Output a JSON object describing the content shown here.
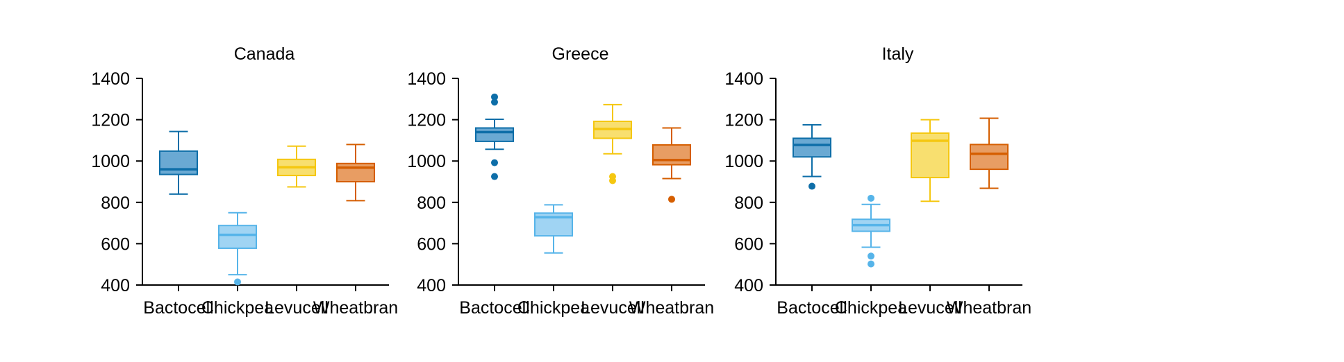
{
  "chart_data": [
    {
      "type": "box",
      "title": "Canada",
      "xlabel": "",
      "ylabel": "",
      "ylim": [
        400,
        1400
      ],
      "yticks": [
        400,
        600,
        800,
        1000,
        1200,
        1400
      ],
      "categories": [
        "Bactocell",
        "Chickpea",
        "Levucell",
        "Wheatbran"
      ],
      "boxes": [
        {
          "category": "Bactocell",
          "whisker_low": 840,
          "q1": 935,
          "median": 960,
          "q3": 1048,
          "whisker_high": 1143,
          "outliers": []
        },
        {
          "category": "Chickpea",
          "whisker_low": 450,
          "q1": 578,
          "median": 643,
          "q3": 688,
          "whisker_high": 750,
          "outliers": [
            415
          ]
        },
        {
          "category": "Levucell",
          "whisker_low": 875,
          "q1": 930,
          "median": 970,
          "q3": 1008,
          "whisker_high": 1072,
          "outliers": []
        },
        {
          "category": "Wheatbran",
          "whisker_low": 808,
          "q1": 900,
          "median": 968,
          "q3": 988,
          "whisker_high": 1080,
          "outliers": []
        }
      ]
    },
    {
      "type": "box",
      "title": "Greece",
      "xlabel": "",
      "ylabel": "",
      "ylim": [
        400,
        1400
      ],
      "yticks": [
        400,
        600,
        800,
        1000,
        1200,
        1400
      ],
      "categories": [
        "Bactocell",
        "Chickpea",
        "Levucell",
        "Wheatbran"
      ],
      "boxes": [
        {
          "category": "Bactocell",
          "whisker_low": 1057,
          "q1": 1095,
          "median": 1140,
          "q3": 1160,
          "whisker_high": 1202,
          "outliers": [
            1310,
            1285,
            992,
            925
          ]
        },
        {
          "category": "Chickpea",
          "whisker_low": 555,
          "q1": 638,
          "median": 728,
          "q3": 748,
          "whisker_high": 788,
          "outliers": []
        },
        {
          "category": "Levucell",
          "whisker_low": 1035,
          "q1": 1110,
          "median": 1155,
          "q3": 1192,
          "whisker_high": 1273,
          "outliers": [
            925,
            905
          ]
        },
        {
          "category": "Wheatbran",
          "whisker_low": 915,
          "q1": 982,
          "median": 1005,
          "q3": 1078,
          "whisker_high": 1160,
          "outliers": [
            815
          ]
        }
      ]
    },
    {
      "type": "box",
      "title": "Italy",
      "xlabel": "",
      "ylabel": "",
      "ylim": [
        400,
        1400
      ],
      "yticks": [
        400,
        600,
        800,
        1000,
        1200,
        1400
      ],
      "categories": [
        "Bactocell",
        "Chickpea",
        "Levucell",
        "Wheatbran"
      ],
      "boxes": [
        {
          "category": "Bactocell",
          "whisker_low": 925,
          "q1": 1020,
          "median": 1078,
          "q3": 1110,
          "whisker_high": 1175,
          "outliers": [
            878
          ]
        },
        {
          "category": "Chickpea",
          "whisker_low": 583,
          "q1": 660,
          "median": 690,
          "q3": 718,
          "whisker_high": 790,
          "outliers": [
            820,
            540,
            502
          ]
        },
        {
          "category": "Levucell",
          "whisker_low": 805,
          "q1": 920,
          "median": 1098,
          "q3": 1135,
          "whisker_high": 1200,
          "outliers": []
        },
        {
          "category": "Wheatbran",
          "whisker_low": 868,
          "q1": 960,
          "median": 1035,
          "q3": 1080,
          "whisker_high": 1207,
          "outliers": []
        }
      ]
    }
  ],
  "colors": {
    "Bactocell": {
      "stroke": "#0e6ea8",
      "fill": "#6aa9d3"
    },
    "Chickpea": {
      "stroke": "#56b4e9",
      "fill": "#a0d4f3"
    },
    "Levucell": {
      "stroke": "#f5c710",
      "fill": "#f8df6f"
    },
    "Wheatbran": {
      "stroke": "#d55e00",
      "fill": "#e89d63"
    },
    "axis": "#000000"
  }
}
